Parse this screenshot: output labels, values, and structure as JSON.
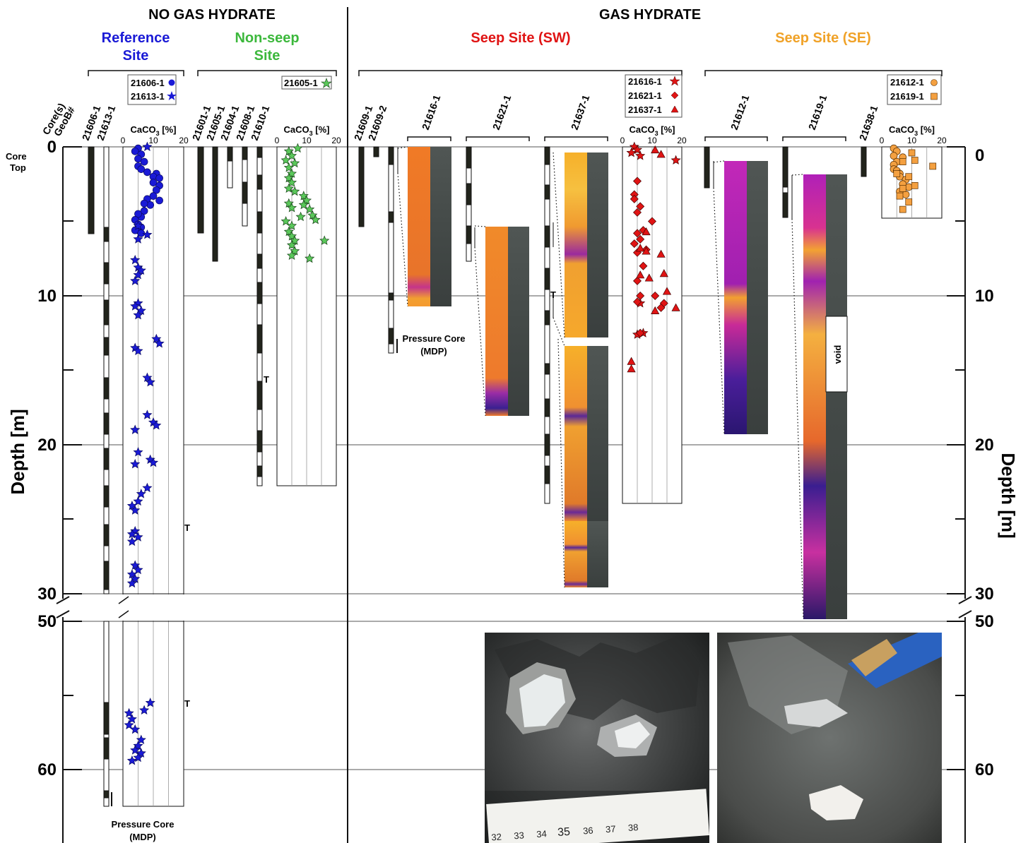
{
  "headers": {
    "no_hydrate": "NO GAS HYDRATE",
    "hydrate": "GAS HYDRATE"
  },
  "sites": {
    "reference": {
      "line1": "Reference",
      "line2": "Site",
      "color": "#1a1ad6"
    },
    "nonseep": {
      "line1": "Non-seep",
      "line2": "Site",
      "color": "#3cb83c"
    },
    "sw": {
      "label": "Seep Site (SW)",
      "color": "#e01414"
    },
    "se": {
      "label": "Seep Site (SE)",
      "color": "#f0a228"
    }
  },
  "legend_boxes": {
    "ref": [
      "21606-1",
      "21613-1"
    ],
    "nonseep": [
      "21605-1"
    ],
    "sw": [
      "21616-1",
      "21621-1",
      "21637-1"
    ],
    "se": [
      "21612-1",
      "21619-1"
    ]
  },
  "corner_label": {
    "line1": "Core(s)",
    "line2": "GeoB#"
  },
  "core_top": {
    "line1": "Core",
    "line2": "Top"
  },
  "depth_label": "Depth [m]",
  "depth_ticks": [
    "0",
    "10",
    "20",
    "30",
    "50",
    "60"
  ],
  "caco3_label": "CaCO3 [%]",
  "caco3_ticks": [
    "0",
    "10",
    "20"
  ],
  "core_ids": {
    "c21606": "21606-1",
    "c21613": "21613-1",
    "c21601": "21601-1",
    "c21605": "21605-1",
    "c21604": "21604-1",
    "c21608": "21608-1",
    "c21610": "21610-1",
    "c21609a": "21609-1",
    "c21609b": "21609-2",
    "c21616": "21616-1",
    "c21621": "21621-1",
    "c21637": "21637-1",
    "c21612": "21612-1",
    "c21619": "21619-1",
    "c21638": "21638-1"
  },
  "pressure_core": {
    "line1": "Pressure Core",
    "line2": "(MDP)"
  },
  "t_marker": "T",
  "void_label": "void",
  "ruler_ticks": [
    "32",
    "33",
    "34",
    "35",
    "36",
    "37",
    "38"
  ],
  "chart_data": [
    {
      "type": "scatter",
      "name_ref": "21606-1",
      "xlabel": "CaCO3 [%]",
      "ylabel": "Depth [m]",
      "xlim": [
        0,
        20
      ],
      "series": [
        {
          "name": "21606-1",
          "marker": "circle",
          "color": "#1a1ad6",
          "points": [
            [
              5,
              0.1
            ],
            [
              4,
              0.3
            ],
            [
              6,
              0.5
            ],
            [
              5,
              0.8
            ],
            [
              7,
              1.0
            ],
            [
              5,
              1.3
            ],
            [
              6,
              1.5
            ],
            [
              8,
              1.7
            ],
            [
              11,
              1.8
            ],
            [
              10,
              2.0
            ],
            [
              12,
              2.1
            ],
            [
              10,
              2.4
            ],
            [
              12,
              2.6
            ],
            [
              11,
              2.9
            ],
            [
              10,
              3.3
            ],
            [
              12,
              3.6
            ],
            [
              8,
              3.5
            ],
            [
              9,
              3.9
            ],
            [
              7,
              3.8
            ],
            [
              7,
              4.3
            ],
            [
              6,
              4.7
            ],
            [
              5,
              4.5
            ],
            [
              4,
              4.9
            ],
            [
              5,
              5.2
            ],
            [
              6,
              5.4
            ],
            [
              5,
              5.6
            ],
            [
              4,
              5.6
            ],
            [
              6,
              5.8
            ]
          ]
        },
        {
          "name": "21613-1",
          "marker": "star",
          "color": "#1a1ad6",
          "points": [
            [
              8,
              0
            ],
            [
              5,
              5.3
            ],
            [
              8,
              5.9
            ],
            [
              5,
              6.2
            ],
            [
              4,
              7.6
            ],
            [
              5,
              8.1
            ],
            [
              6,
              8.3
            ],
            [
              5,
              8.6
            ],
            [
              4,
              9.0
            ],
            [
              5,
              10.5
            ],
            [
              4,
              10.7
            ],
            [
              6,
              11.0
            ],
            [
              5,
              11.3
            ],
            [
              11,
              12.9
            ],
            [
              12,
              13.2
            ],
            [
              4,
              13.5
            ],
            [
              5,
              13.7
            ],
            [
              8,
              15.5
            ],
            [
              9,
              15.8
            ],
            [
              8,
              18.0
            ],
            [
              10,
              18.5
            ],
            [
              11,
              18.7
            ],
            [
              4,
              19.0
            ],
            [
              5,
              20.5
            ],
            [
              4,
              21.3
            ],
            [
              9,
              21.0
            ],
            [
              10,
              21.2
            ],
            [
              8,
              22.9
            ],
            [
              6,
              23.3
            ],
            [
              5,
              23.8
            ],
            [
              3,
              24.1
            ],
            [
              4,
              24.4
            ],
            [
              4,
              25.8
            ],
            [
              3,
              26.0
            ],
            [
              5,
              26.2
            ],
            [
              3,
              26.5
            ],
            [
              4,
              28.1
            ],
            [
              5,
              28.4
            ],
            [
              3,
              28.7
            ],
            [
              4,
              29.0
            ],
            [
              3,
              29.3
            ],
            [
              9,
              55.5
            ],
            [
              7,
              56.0
            ],
            [
              2,
              56.2
            ],
            [
              3,
              56.6
            ],
            [
              2,
              57.0
            ],
            [
              4,
              57.3
            ],
            [
              6,
              58.0
            ],
            [
              5,
              58.4
            ],
            [
              4,
              58.7
            ],
            [
              6,
              58.9
            ],
            [
              5,
              59.2
            ],
            [
              3,
              59.4
            ]
          ]
        },
        {
          "name": "21605-1",
          "marker": "star",
          "color": "#3cb83c",
          "points": [
            [
              7,
              0.1
            ],
            [
              4,
              0.3
            ],
            [
              5,
              0.6
            ],
            [
              3,
              0.9
            ],
            [
              6,
              1.1
            ],
            [
              4,
              1.4
            ],
            [
              5,
              1.8
            ],
            [
              4,
              2.1
            ],
            [
              5,
              2.4
            ],
            [
              4,
              2.8
            ],
            [
              6,
              3.0
            ],
            [
              9,
              3.3
            ],
            [
              10,
              3.6
            ],
            [
              9,
              3.9
            ],
            [
              4,
              3.8
            ],
            [
              5,
              4.1
            ],
            [
              11,
              4.2
            ],
            [
              12,
              4.6
            ],
            [
              13,
              4.9
            ],
            [
              8,
              4.7
            ],
            [
              3,
              5.0
            ],
            [
              5,
              5.3
            ],
            [
              4,
              5.7
            ],
            [
              5,
              6.0
            ],
            [
              6,
              6.3
            ],
            [
              16,
              6.3
            ],
            [
              5,
              6.6
            ],
            [
              6,
              7.0
            ],
            [
              5,
              7.3
            ],
            [
              11,
              7.5
            ]
          ]
        },
        {
          "name": "21616-1",
          "marker": "star",
          "color": "#e01414",
          "points": [
            [
              4,
              0
            ],
            [
              5,
              0.2
            ],
            [
              3,
              0.4
            ],
            [
              6,
              0.6
            ],
            [
              18,
              0.9
            ],
            [
              6,
              10.5
            ],
            [
              5,
              12.6
            ],
            [
              7,
              12.5
            ]
          ]
        },
        {
          "name": "21621-1",
          "marker": "diamond",
          "color": "#e01414",
          "points": [
            [
              5,
              2.3
            ],
            [
              4,
              3.2
            ],
            [
              4,
              3.5
            ],
            [
              6,
              4.0
            ],
            [
              5,
              4.4
            ],
            [
              10,
              5.0
            ],
            [
              7,
              5.6
            ],
            [
              5,
              5.8
            ],
            [
              6,
              6.2
            ],
            [
              4,
              6.5
            ],
            [
              8,
              6.9
            ],
            [
              5,
              7.1
            ],
            [
              7,
              8.0
            ],
            [
              5,
              9.0
            ],
            [
              6,
              10.0
            ],
            [
              11,
              10.0
            ],
            [
              5,
              10.4
            ],
            [
              14,
              10.5
            ],
            [
              13,
              10.8
            ],
            [
              6,
              12.5
            ]
          ]
        },
        {
          "name": "21637-1",
          "marker": "triangle",
          "color": "#e01414",
          "points": [
            [
              11,
              0.2
            ],
            [
              13,
              0.5
            ],
            [
              8,
              5.7
            ],
            [
              6,
              6.8
            ],
            [
              8,
              7.0
            ],
            [
              13,
              7.2
            ],
            [
              6,
              8.6
            ],
            [
              9,
              8.8
            ],
            [
              14,
              8.5
            ],
            [
              15,
              9.7
            ],
            [
              18,
              10.8
            ],
            [
              11,
              11.0
            ],
            [
              3,
              14.4
            ],
            [
              3,
              14.9
            ]
          ]
        },
        {
          "name": "21612-1",
          "marker": "circle",
          "color": "#f0a228",
          "points": [
            [
              4,
              0.1
            ],
            [
              5,
              0.3
            ],
            [
              4,
              0.6
            ],
            [
              7,
              0.7
            ],
            [
              5,
              1.0
            ],
            [
              4,
              1.2
            ],
            [
              4,
              1.5
            ],
            [
              5,
              1.6
            ],
            [
              6,
              1.8
            ],
            [
              6,
              2.0
            ],
            [
              8,
              2.2
            ],
            [
              7,
              2.5
            ],
            [
              9,
              2.7
            ],
            [
              6,
              3.0
            ],
            [
              8,
              3.2
            ]
          ]
        },
        {
          "name": "21619-1",
          "marker": "square",
          "color": "#f0a228",
          "points": [
            [
              10,
              0.4
            ],
            [
              7,
              1.0
            ],
            [
              11,
              0.9
            ],
            [
              17,
              1.3
            ],
            [
              5,
              1.8
            ],
            [
              9,
              2.0
            ],
            [
              7,
              2.8
            ],
            [
              11,
              2.6
            ],
            [
              6,
              3.3
            ],
            [
              9,
              3.7
            ],
            [
              7,
              4.2
            ]
          ]
        }
      ]
    }
  ]
}
